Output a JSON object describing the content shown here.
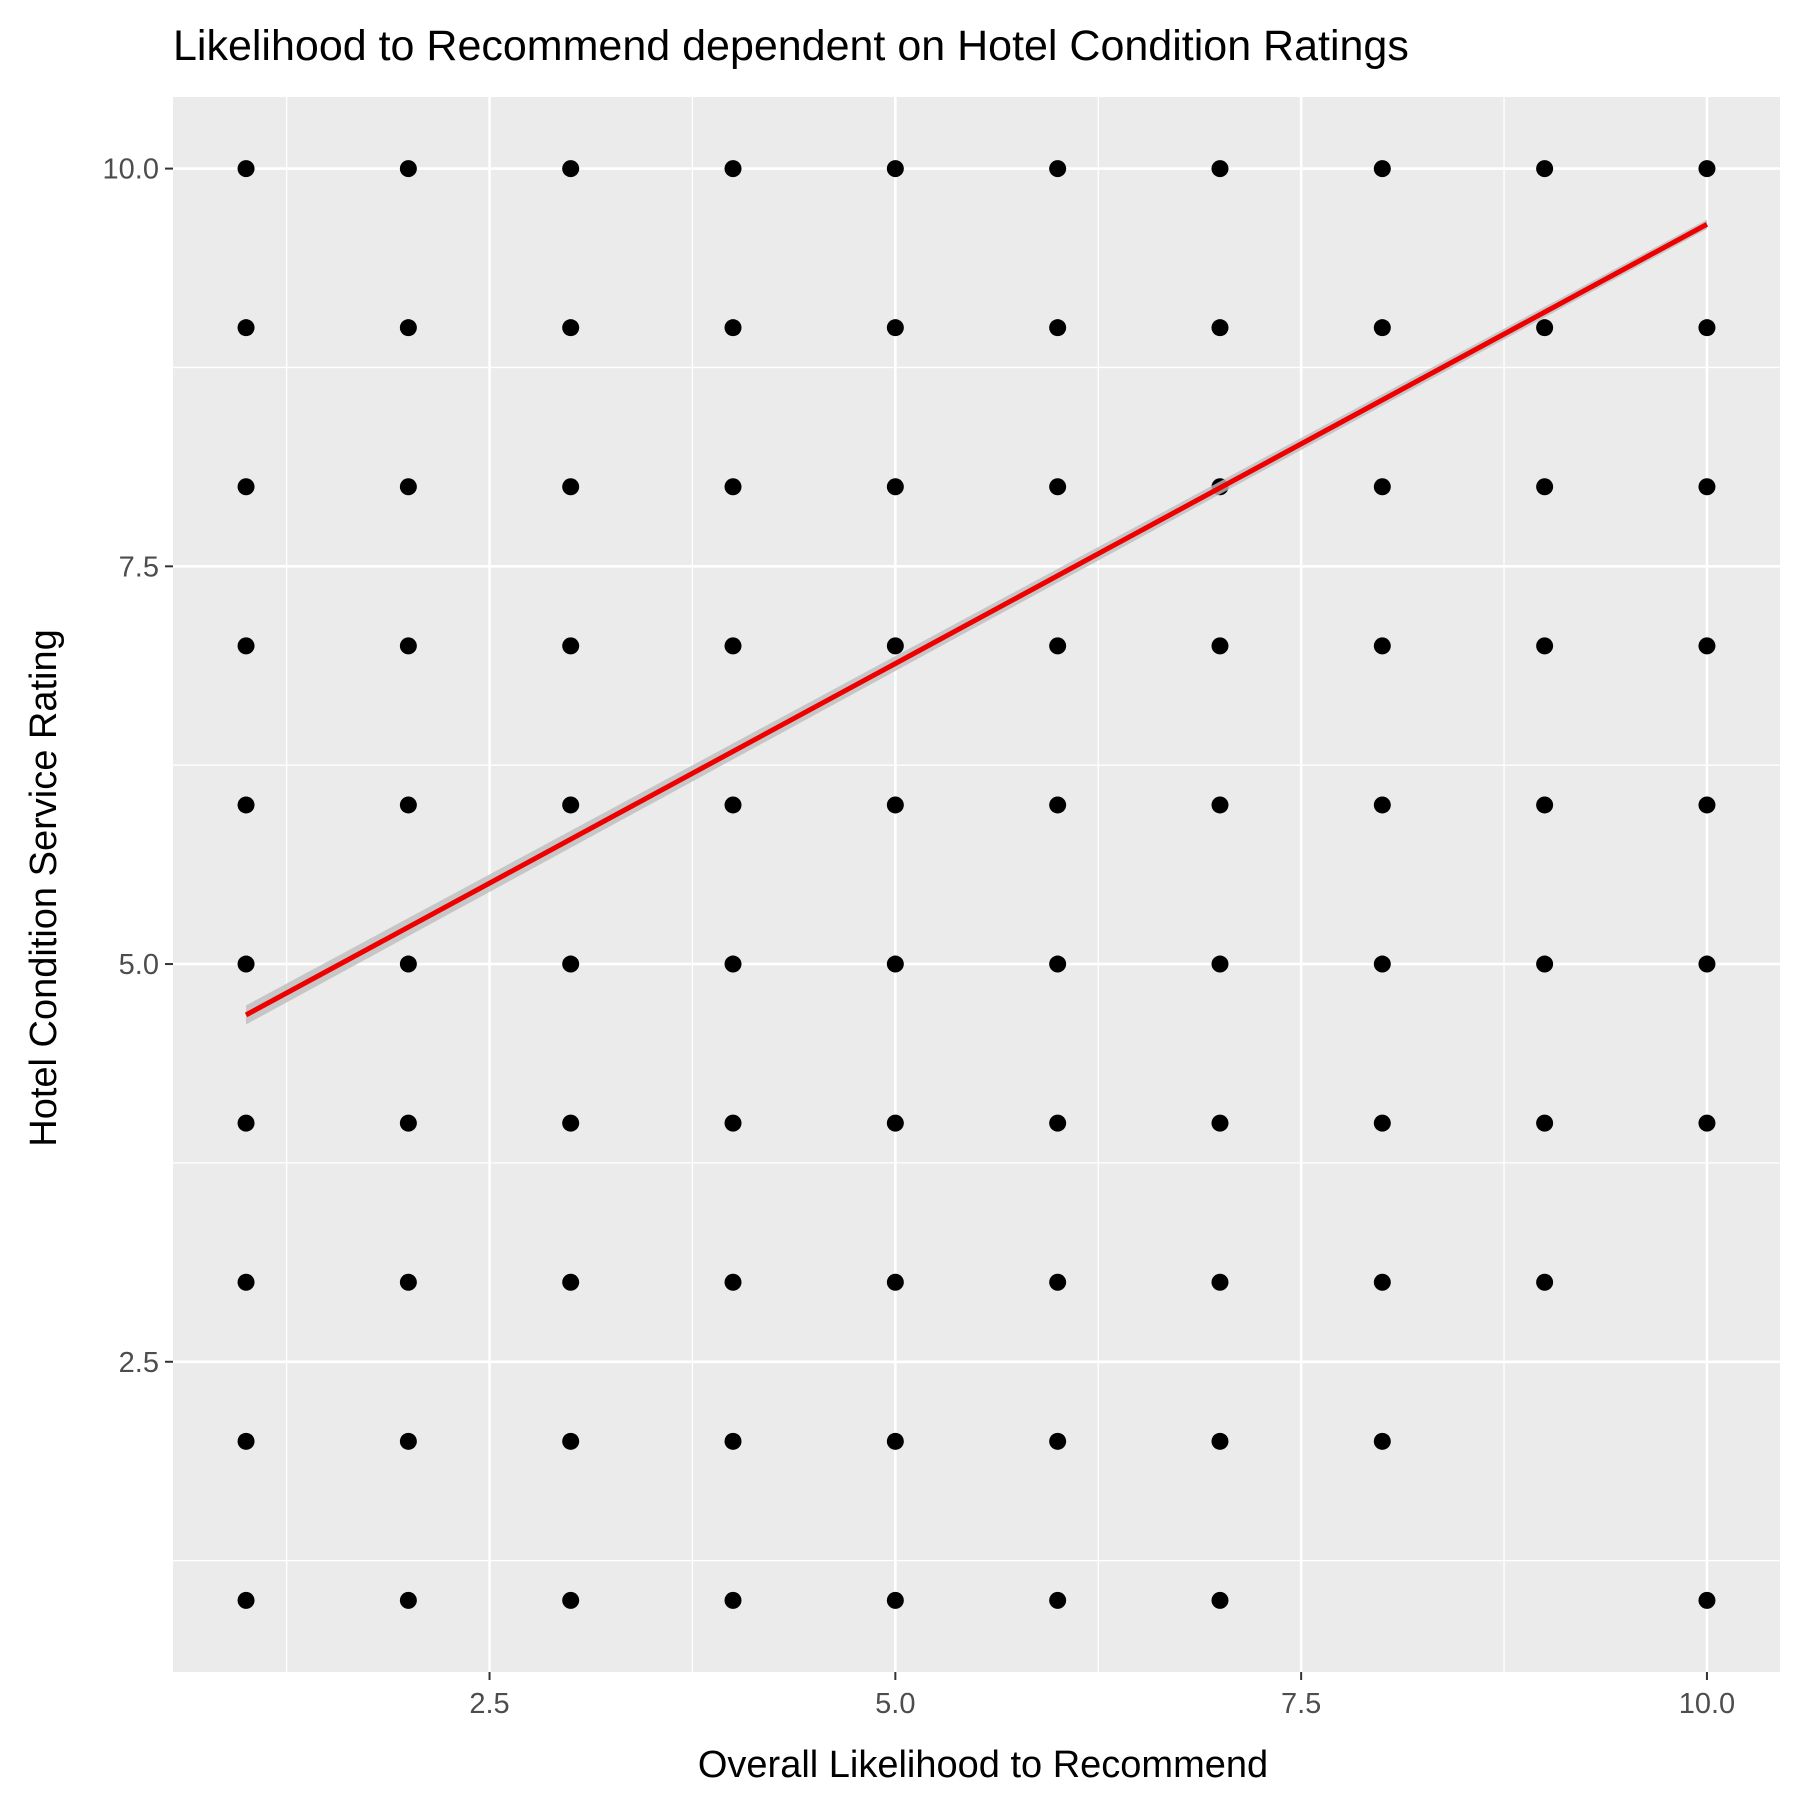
{
  "chart_data": {
    "type": "scatter",
    "title": "Likelihood to Recommend dependent on Hotel Condition Ratings",
    "xlabel": "Overall Likelihood to Recommend",
    "ylabel": "Hotel Condition Service Rating",
    "xlim": [
      0.55,
      10.45
    ],
    "ylim": [
      0.55,
      10.45
    ],
    "x_ticks": [
      2.5,
      5.0,
      7.5,
      10.0
    ],
    "x_tick_labels": [
      "2.5",
      "5.0",
      "7.5",
      "10.0"
    ],
    "y_ticks": [
      2.5,
      5.0,
      7.5,
      10.0
    ],
    "y_tick_labels": [
      "2.5",
      "5.0",
      "7.5",
      "10.0"
    ],
    "grid": true,
    "background": "#ebebeb",
    "grid_color": "#ffffff",
    "point_color": "#000000",
    "points": [
      [
        1,
        10
      ],
      [
        2,
        10
      ],
      [
        3,
        10
      ],
      [
        4,
        10
      ],
      [
        5,
        10
      ],
      [
        6,
        10
      ],
      [
        7,
        10
      ],
      [
        8,
        10
      ],
      [
        9,
        10
      ],
      [
        10,
        10
      ],
      [
        1,
        9
      ],
      [
        2,
        9
      ],
      [
        3,
        9
      ],
      [
        4,
        9
      ],
      [
        5,
        9
      ],
      [
        6,
        9
      ],
      [
        7,
        9
      ],
      [
        8,
        9
      ],
      [
        9,
        9
      ],
      [
        10,
        9
      ],
      [
        1,
        8
      ],
      [
        2,
        8
      ],
      [
        3,
        8
      ],
      [
        4,
        8
      ],
      [
        5,
        8
      ],
      [
        6,
        8
      ],
      [
        7,
        8
      ],
      [
        8,
        8
      ],
      [
        9,
        8
      ],
      [
        10,
        8
      ],
      [
        1,
        7
      ],
      [
        2,
        7
      ],
      [
        3,
        7
      ],
      [
        4,
        7
      ],
      [
        5,
        7
      ],
      [
        6,
        7
      ],
      [
        7,
        7
      ],
      [
        8,
        7
      ],
      [
        9,
        7
      ],
      [
        10,
        7
      ],
      [
        1,
        6
      ],
      [
        2,
        6
      ],
      [
        3,
        6
      ],
      [
        4,
        6
      ],
      [
        5,
        6
      ],
      [
        6,
        6
      ],
      [
        7,
        6
      ],
      [
        8,
        6
      ],
      [
        9,
        6
      ],
      [
        10,
        6
      ],
      [
        1,
        5
      ],
      [
        2,
        5
      ],
      [
        3,
        5
      ],
      [
        4,
        5
      ],
      [
        5,
        5
      ],
      [
        6,
        5
      ],
      [
        7,
        5
      ],
      [
        8,
        5
      ],
      [
        9,
        5
      ],
      [
        10,
        5
      ],
      [
        1,
        4
      ],
      [
        2,
        4
      ],
      [
        3,
        4
      ],
      [
        4,
        4
      ],
      [
        5,
        4
      ],
      [
        6,
        4
      ],
      [
        7,
        4
      ],
      [
        8,
        4
      ],
      [
        9,
        4
      ],
      [
        10,
        4
      ],
      [
        1,
        3
      ],
      [
        2,
        3
      ],
      [
        3,
        3
      ],
      [
        4,
        3
      ],
      [
        5,
        3
      ],
      [
        6,
        3
      ],
      [
        7,
        3
      ],
      [
        8,
        3
      ],
      [
        9,
        3
      ],
      [
        1,
        2
      ],
      [
        2,
        2
      ],
      [
        3,
        2
      ],
      [
        4,
        2
      ],
      [
        5,
        2
      ],
      [
        6,
        2
      ],
      [
        7,
        2
      ],
      [
        8,
        2
      ],
      [
        1,
        1
      ],
      [
        2,
        1
      ],
      [
        3,
        1
      ],
      [
        4,
        1
      ],
      [
        5,
        1
      ],
      [
        6,
        1
      ],
      [
        7,
        1
      ],
      [
        10,
        1
      ]
    ],
    "trend_line": {
      "type": "linear",
      "color": "#ee0000",
      "band_color": "#bdbdbd",
      "x": [
        1,
        10
      ],
      "y": [
        4.68,
        9.65
      ],
      "band_halfwidth": [
        0.06,
        0.03
      ]
    }
  }
}
